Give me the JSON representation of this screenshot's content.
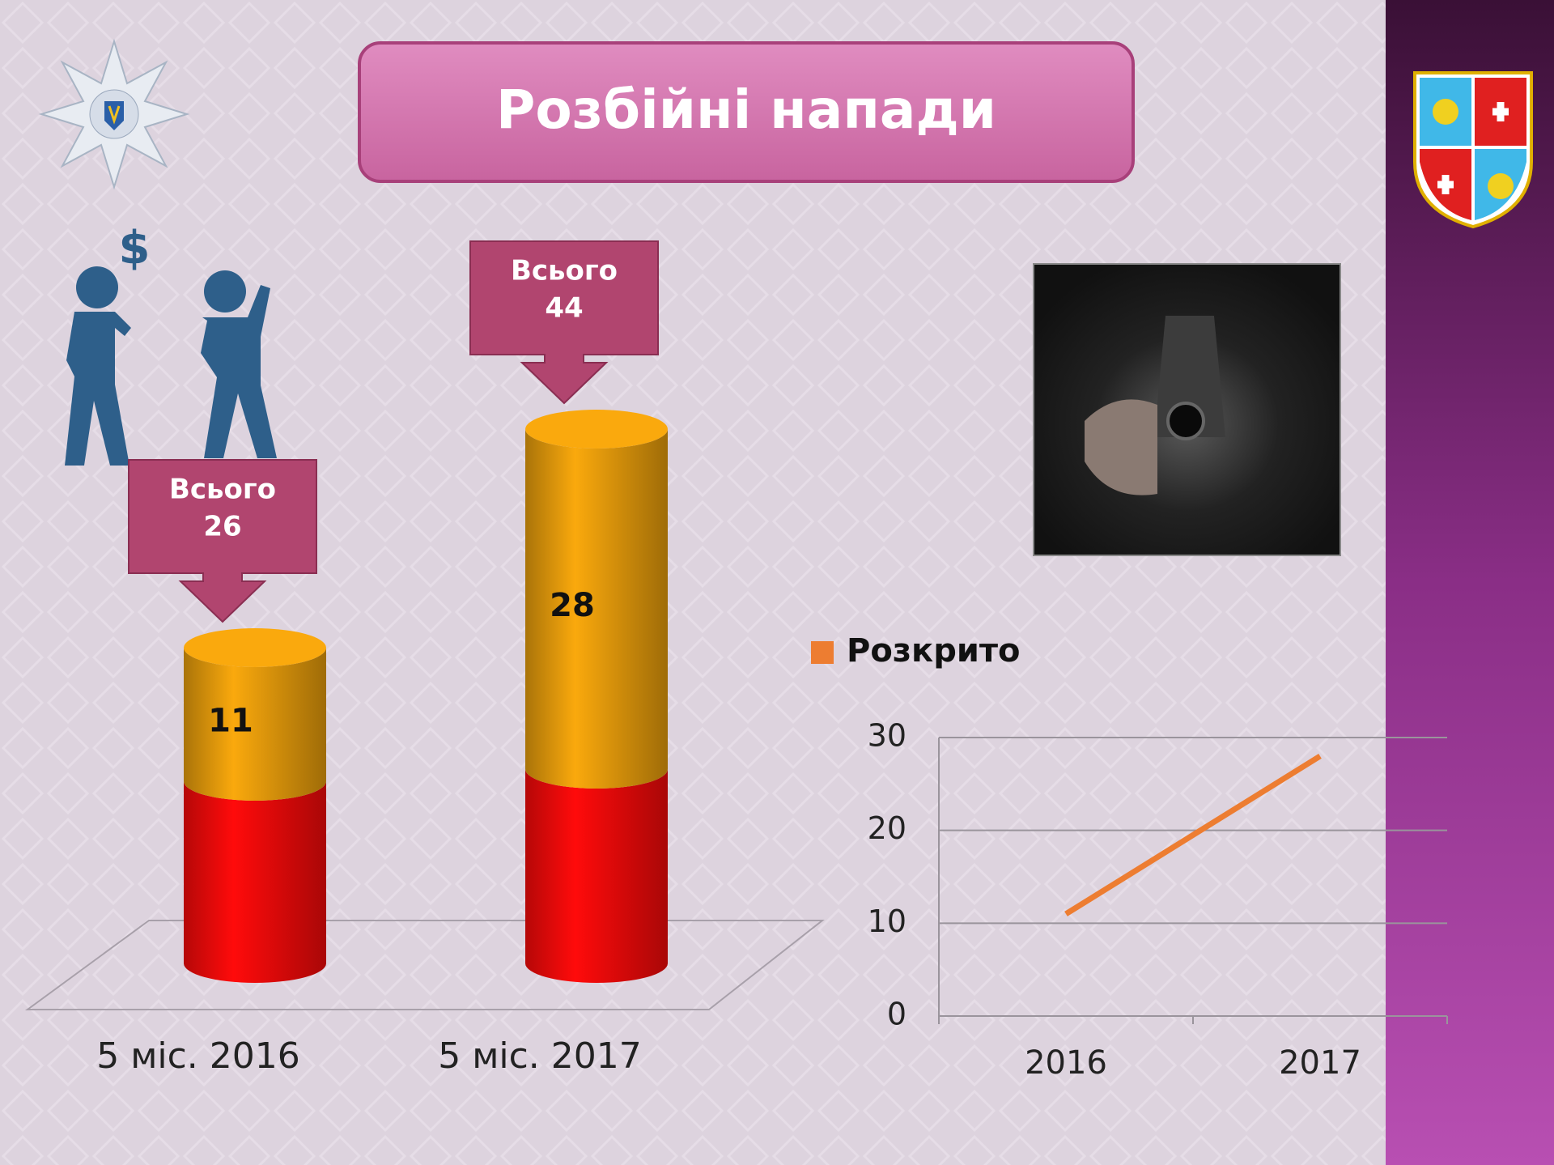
{
  "title": "Розбійні напади",
  "chart_data": [
    {
      "type": "cylinder-stack",
      "categories": [
        "5 міс. 2016",
        "5 міс. 2017"
      ],
      "series": [
        {
          "color": "#f20a0a",
          "values": [
            15,
            16
          ]
        },
        {
          "color": "#e39a0c",
          "values": [
            11,
            28
          ]
        }
      ],
      "value_labels_series": 1,
      "annotations": [
        {
          "label": "Всього",
          "value": 26
        },
        {
          "label": "Всього",
          "value": 44
        }
      ]
    },
    {
      "type": "line",
      "categories": [
        "2016",
        "2017"
      ],
      "series": [
        {
          "name": "Розкрито",
          "color": "#ed7d31",
          "values": [
            11,
            28
          ]
        }
      ],
      "ylim": [
        0,
        30
      ],
      "yticks": [
        0,
        10,
        20,
        30
      ],
      "grid": true,
      "legend": "top-left"
    }
  ]
}
